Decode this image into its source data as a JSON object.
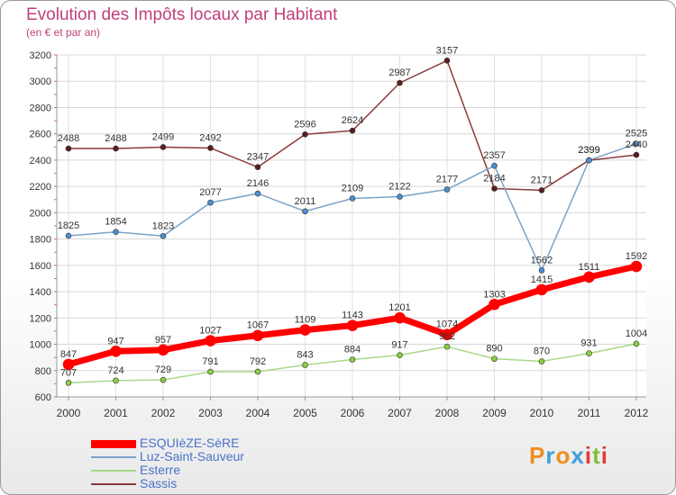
{
  "title": "Evolution des Impôts locaux par Habitant",
  "subtitle": "(en € et par an)",
  "logo": {
    "letters": [
      "P",
      "r",
      "o",
      "x",
      "i",
      "t",
      "i"
    ],
    "colors": [
      "#f28c1e",
      "#3fa0d8",
      "#f28c1e",
      "#3fa0d8",
      "#e03a3a",
      "#7fbf3f",
      "#e03a3a"
    ]
  },
  "chart_data": {
    "type": "line",
    "title": "Evolution des Impôts locaux par Habitant",
    "subtitle": "(en € et par an)",
    "x": [
      "2000",
      "2001",
      "2002",
      "2003",
      "2004",
      "2005",
      "2006",
      "2007",
      "2008",
      "2009",
      "2010",
      "2011",
      "2012"
    ],
    "ylim": [
      600,
      3200
    ],
    "yticks": [
      600,
      800,
      1000,
      1200,
      1400,
      1600,
      1800,
      2000,
      2200,
      2400,
      2600,
      2800,
      3000,
      3200
    ],
    "grid": true,
    "legend_position": "bottom-left",
    "series": [
      {
        "name": "ESQUIèZE-SèRE",
        "color": "#ff0000",
        "marker": "#ff0000",
        "width": 7,
        "values": [
          847,
          947,
          957,
          1027,
          1067,
          1109,
          1143,
          1201,
          1074,
          1303,
          1415,
          1511,
          1592
        ]
      },
      {
        "name": "Luz-Saint-Sauveur",
        "color": "#7ba3c8",
        "marker": "#4a8fd0",
        "width": 1.5,
        "values": [
          1825,
          1854,
          1823,
          2077,
          2146,
          2011,
          2109,
          2122,
          2177,
          2357,
          1562,
          2399,
          2525
        ]
      },
      {
        "name": "Esterre",
        "color": "#a8d88a",
        "marker": "#88d040",
        "width": 1.5,
        "values": [
          707,
          724,
          729,
          791,
          792,
          843,
          884,
          917,
          982,
          890,
          870,
          931,
          1004
        ]
      },
      {
        "name": "Sassis",
        "color": "#8b3a3a",
        "marker": "#5a1e1e",
        "width": 1.5,
        "values": [
          2488,
          2488,
          2499,
          2492,
          2347,
          2596,
          2624,
          2987,
          3157,
          2184,
          2171,
          2399,
          2440
        ]
      }
    ]
  }
}
